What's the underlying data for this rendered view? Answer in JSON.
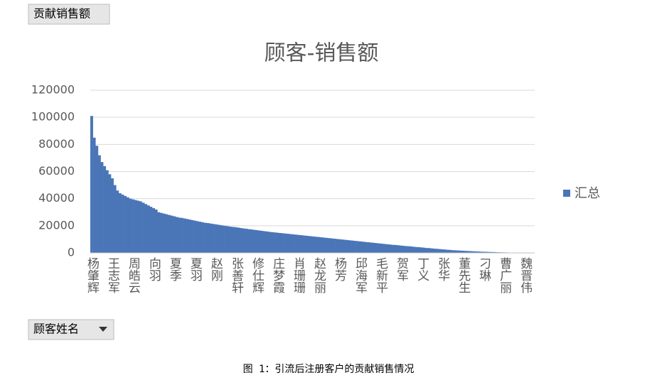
{
  "field_buttons": {
    "value_field": "贡献销售额",
    "axis_field": "顾客姓名"
  },
  "caption": "图 1：引流后注册客户的贡献销售情况",
  "chart_data": {
    "type": "bar",
    "title": "顾客-销售额",
    "ylim": [
      0,
      120000
    ],
    "yticks": [
      0,
      20000,
      40000,
      60000,
      80000,
      100000,
      120000
    ],
    "grid": true,
    "legend": "right",
    "categories": [
      "杨肇辉",
      null,
      null,
      null,
      null,
      null,
      null,
      null,
      "王志军",
      null,
      null,
      null,
      null,
      null,
      null,
      null,
      "周皓云",
      null,
      null,
      null,
      null,
      null,
      null,
      null,
      "向羽",
      null,
      null,
      null,
      null,
      null,
      null,
      null,
      "夏季",
      null,
      null,
      null,
      null,
      null,
      null,
      null,
      "夏羽",
      null,
      null,
      null,
      null,
      null,
      null,
      null,
      "赵刚",
      null,
      null,
      null,
      null,
      null,
      null,
      null,
      "张善轩",
      null,
      null,
      null,
      null,
      null,
      null,
      null,
      "修仕辉",
      null,
      null,
      null,
      null,
      null,
      null,
      null,
      "庄梦霞",
      null,
      null,
      null,
      null,
      null,
      null,
      null,
      "肖珊珊",
      null,
      null,
      null,
      null,
      null,
      null,
      null,
      "赵龙丽",
      null,
      null,
      null,
      null,
      null,
      null,
      null,
      "杨芳",
      null,
      null,
      null,
      null,
      null,
      null,
      null,
      "邱海军",
      null,
      null,
      null,
      null,
      null,
      null,
      null,
      "毛新平",
      null,
      null,
      null,
      null,
      null,
      null,
      null,
      "贺军",
      null,
      null,
      null,
      null,
      null,
      null,
      null,
      "丁义",
      null,
      null,
      null,
      null,
      null,
      null,
      null,
      "张华",
      null,
      null,
      null,
      null,
      null,
      null,
      null,
      "董先生",
      null,
      null,
      null,
      null,
      null,
      null,
      null,
      "刁琳",
      null,
      null,
      null,
      null,
      null,
      null,
      null,
      "曹广丽",
      null,
      null,
      null,
      null,
      null,
      null,
      null,
      "魏晋伟"
    ],
    "series": [
      {
        "name": "汇总",
        "color": "#4a76b8",
        "values": [
          101000,
          85000,
          79000,
          72000,
          67000,
          64000,
          61000,
          58000,
          55000,
          50000,
          46000,
          44000,
          43000,
          42000,
          41000,
          40000,
          39500,
          39000,
          38500,
          38000,
          37000,
          36000,
          35000,
          34000,
          33000,
          32000,
          30000,
          29500,
          29000,
          28500,
          28000,
          27500,
          27000,
          26500,
          26000,
          25800,
          25400,
          25000,
          24600,
          24200,
          23800,
          23400,
          23000,
          22600,
          22200,
          22000,
          21700,
          21400,
          21100,
          20800,
          20500,
          20200,
          19900,
          19600,
          19300,
          19100,
          18900,
          18600,
          18300,
          18000,
          17800,
          17500,
          17300,
          17000,
          16800,
          16500,
          16300,
          16000,
          15800,
          15500,
          15300,
          15100,
          14900,
          14700,
          14500,
          14300,
          14100,
          13900,
          13700,
          13500,
          13300,
          13100,
          12900,
          12700,
          12500,
          12300,
          12100,
          11900,
          11700,
          11500,
          11300,
          11100,
          10900,
          10700,
          10500,
          10300,
          10100,
          9900,
          9700,
          9500,
          9300,
          9100,
          8900,
          8700,
          8500,
          8300,
          8100,
          7900,
          7700,
          7500,
          7300,
          7100,
          6900,
          6700,
          6500,
          6300,
          6100,
          5900,
          5800,
          5600,
          5400,
          5200,
          5000,
          4900,
          4700,
          4500,
          4300,
          4200,
          4000,
          3800,
          3600,
          3500,
          3300,
          3100,
          3000,
          2800,
          2600,
          2500,
          2300,
          2200,
          2000,
          1900,
          1800,
          1700,
          1600,
          1500,
          1400,
          1300,
          1200,
          1100,
          1000,
          900,
          850,
          800,
          700,
          650,
          600,
          500,
          450,
          400,
          350,
          300,
          250,
          200,
          150,
          120,
          100,
          80,
          50
        ]
      }
    ]
  }
}
